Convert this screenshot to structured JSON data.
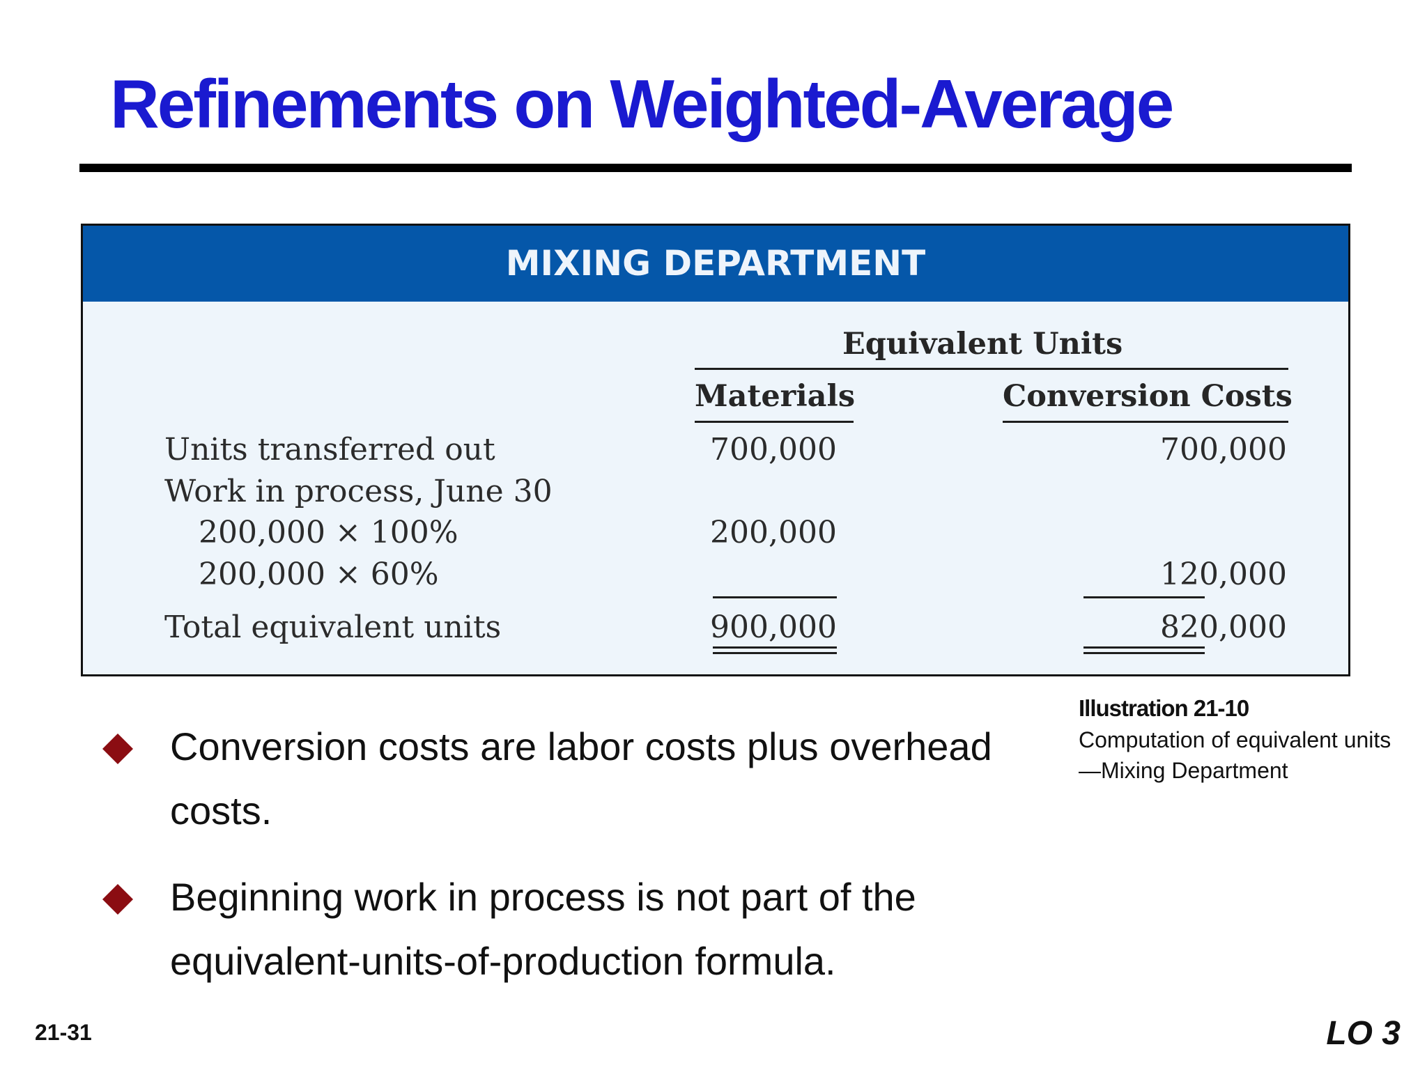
{
  "slide": {
    "title": "Refinements on Weighted-Average",
    "slide_number": "21-31",
    "learning_objective": "LO 3"
  },
  "illustration": {
    "header": "MIXING DEPARTMENT",
    "group_header": "Equivalent Units",
    "columns": [
      "Materials",
      "Conversion Costs"
    ],
    "rows": [
      {
        "label": "Units transferred out",
        "materials": "700,000",
        "conversion": "700,000"
      },
      {
        "label": "Work in process, June 30",
        "materials": "",
        "conversion": ""
      },
      {
        "label": "200,000 × 100%",
        "materials": "200,000",
        "conversion": ""
      },
      {
        "label": "200,000 × 60%",
        "materials": "",
        "conversion": "120,000"
      },
      {
        "label": "Total equivalent units",
        "materials": "900,000",
        "conversion": "820,000"
      }
    ],
    "caption_title": "Illustration 21-10",
    "caption_text": "Computation of equivalent units—Mixing Department"
  },
  "bullets": [
    "Conversion costs are labor costs plus overhead costs.",
    "Beginning work in process is not part of the equivalent-units-of-production formula."
  ],
  "colors": {
    "title": "#1a1ad0",
    "header_band": "#0557a9",
    "table_background": "#eef5fb",
    "bullet": "#8b0d12"
  }
}
